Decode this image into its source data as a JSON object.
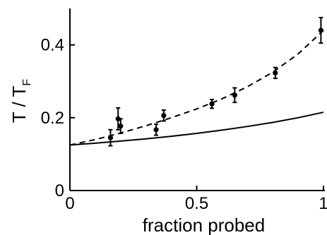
{
  "chart_data": {
    "type": "scatter",
    "title": "",
    "xlabel": "fraction probed",
    "ylabel": "T / T",
    "ylabel_subscript": "F",
    "xlim": [
      0,
      1
    ],
    "ylim": [
      0,
      0.5
    ],
    "x_ticks": [
      0,
      0.5,
      1
    ],
    "x_tick_labels": [
      "0",
      "0.5",
      "1"
    ],
    "y_ticks": [
      0,
      0.2,
      0.4
    ],
    "y_tick_labels": [
      "0",
      "0.2",
      "0.4"
    ],
    "grid": false,
    "series": [
      {
        "style": "points-with-error-bars",
        "color": "#000000",
        "points": [
          {
            "x": 0.16,
            "y": 0.145,
            "err": 0.022
          },
          {
            "x": 0.19,
            "y": 0.197,
            "err": 0.03
          },
          {
            "x": 0.2,
            "y": 0.177,
            "err": 0.02
          },
          {
            "x": 0.34,
            "y": 0.167,
            "err": 0.015
          },
          {
            "x": 0.37,
            "y": 0.206,
            "err": 0.015
          },
          {
            "x": 0.56,
            "y": 0.238,
            "err": 0.012
          },
          {
            "x": 0.65,
            "y": 0.262,
            "err": 0.02
          },
          {
            "x": 0.81,
            "y": 0.323,
            "err": 0.015
          },
          {
            "x": 0.99,
            "y": 0.44,
            "err": 0.035
          }
        ]
      },
      {
        "style": "dashed-curve",
        "color": "#000000",
        "x": [
          0,
          0.1,
          0.2,
          0.3,
          0.4,
          0.5,
          0.6,
          0.7,
          0.8,
          0.9,
          1.0
        ],
        "y": [
          0.125,
          0.14,
          0.158,
          0.178,
          0.2,
          0.224,
          0.252,
          0.285,
          0.325,
          0.375,
          0.44
        ]
      },
      {
        "style": "solid-curve",
        "color": "#000000",
        "x": [
          0,
          0.1,
          0.2,
          0.3,
          0.4,
          0.5,
          0.6,
          0.7,
          0.8,
          0.9,
          1.0
        ],
        "y": [
          0.125,
          0.13,
          0.136,
          0.142,
          0.149,
          0.157,
          0.166,
          0.176,
          0.187,
          0.2,
          0.215
        ]
      }
    ]
  }
}
